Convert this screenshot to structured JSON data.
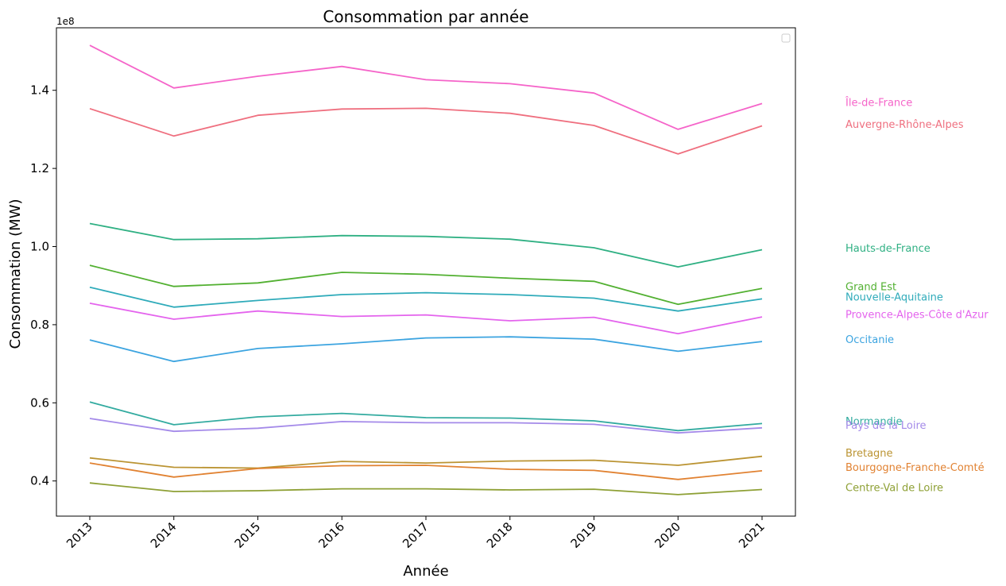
{
  "chart_data": {
    "type": "line",
    "title": "Consommation par année",
    "xlabel": "Année",
    "ylabel": "Consommation (MW)",
    "y_offset_label": "1e8",
    "ylim": [
      31000000,
      156000000
    ],
    "yticks": [
      0.4,
      0.6,
      0.8,
      1.0,
      1.2,
      1.4
    ],
    "ytick_labels": [
      "0.4",
      "0.6",
      "0.8",
      "1.0",
      "1.2",
      "1.4"
    ],
    "x": [
      "2013",
      "2014",
      "2015",
      "2016",
      "2017",
      "2018",
      "2019",
      "2020",
      "2021"
    ],
    "legend": "top-right (empty)",
    "grid": false,
    "series": [
      {
        "name": "Île-de-France",
        "color": "#f564c9",
        "label_value": 137000000,
        "values": [
          151500000,
          140600000,
          143600000,
          146100000,
          142700000,
          141700000,
          139300000,
          130000000,
          136600000
        ]
      },
      {
        "name": "Auvergne-Rhône-Alpes",
        "color": "#ef6f7f",
        "label_value": 131400000,
        "values": [
          135300000,
          128300000,
          133600000,
          135200000,
          135400000,
          134100000,
          131000000,
          123700000,
          130900000
        ]
      },
      {
        "name": "Hauts-de-France",
        "color": "#2fb083",
        "label_value": 99700000,
        "values": [
          105900000,
          101800000,
          102000000,
          102800000,
          102600000,
          101900000,
          99700000,
          94800000,
          99200000
        ]
      },
      {
        "name": "Grand Est",
        "color": "#52b031",
        "label_value": 89800000,
        "values": [
          95200000,
          89800000,
          90700000,
          93400000,
          92900000,
          91900000,
          91100000,
          85200000,
          89300000
        ]
      },
      {
        "name": "Nouvelle-Aquitaine",
        "color": "#2fabba",
        "label_value": 87200000,
        "values": [
          89600000,
          84500000,
          86200000,
          87700000,
          88200000,
          87700000,
          86800000,
          83500000,
          86600000
        ]
      },
      {
        "name": "Provence-Alpes-Côte d'Azur",
        "color": "#e464ed",
        "label_value": 82700000,
        "values": [
          85500000,
          81400000,
          83500000,
          82100000,
          82500000,
          81000000,
          81900000,
          77700000,
          82000000
        ]
      },
      {
        "name": "Occitanie",
        "color": "#3ca4e0",
        "label_value": 76300000,
        "values": [
          76100000,
          70600000,
          73900000,
          75100000,
          76600000,
          76900000,
          76300000,
          73200000,
          75700000
        ]
      },
      {
        "name": "Normandie",
        "color": "#33aba0",
        "label_value": 55400000,
        "values": [
          60200000,
          54400000,
          56400000,
          57300000,
          56200000,
          56100000,
          55400000,
          52900000,
          54700000
        ]
      },
      {
        "name": "Pays de la Loire",
        "color": "#a48ae9",
        "label_value": 54400000,
        "values": [
          56000000,
          52700000,
          53500000,
          55200000,
          54900000,
          54900000,
          54500000,
          52300000,
          53600000
        ]
      },
      {
        "name": "Bretagne",
        "color": "#bb9433",
        "label_value": 47300000,
        "values": [
          45900000,
          43500000,
          43300000,
          45000000,
          44600000,
          45100000,
          45300000,
          44000000,
          46300000
        ]
      },
      {
        "name": "Bourgogne-Franche-Comté",
        "color": "#e18232",
        "label_value": 43600000,
        "values": [
          44600000,
          41000000,
          43200000,
          43900000,
          44000000,
          43000000,
          42700000,
          40400000,
          42600000
        ]
      },
      {
        "name": "Centre-Val de Loire",
        "color": "#8ea035",
        "label_value": 38400000,
        "values": [
          39500000,
          37300000,
          37500000,
          38000000,
          38000000,
          37700000,
          37900000,
          36500000,
          37800000
        ]
      }
    ]
  }
}
